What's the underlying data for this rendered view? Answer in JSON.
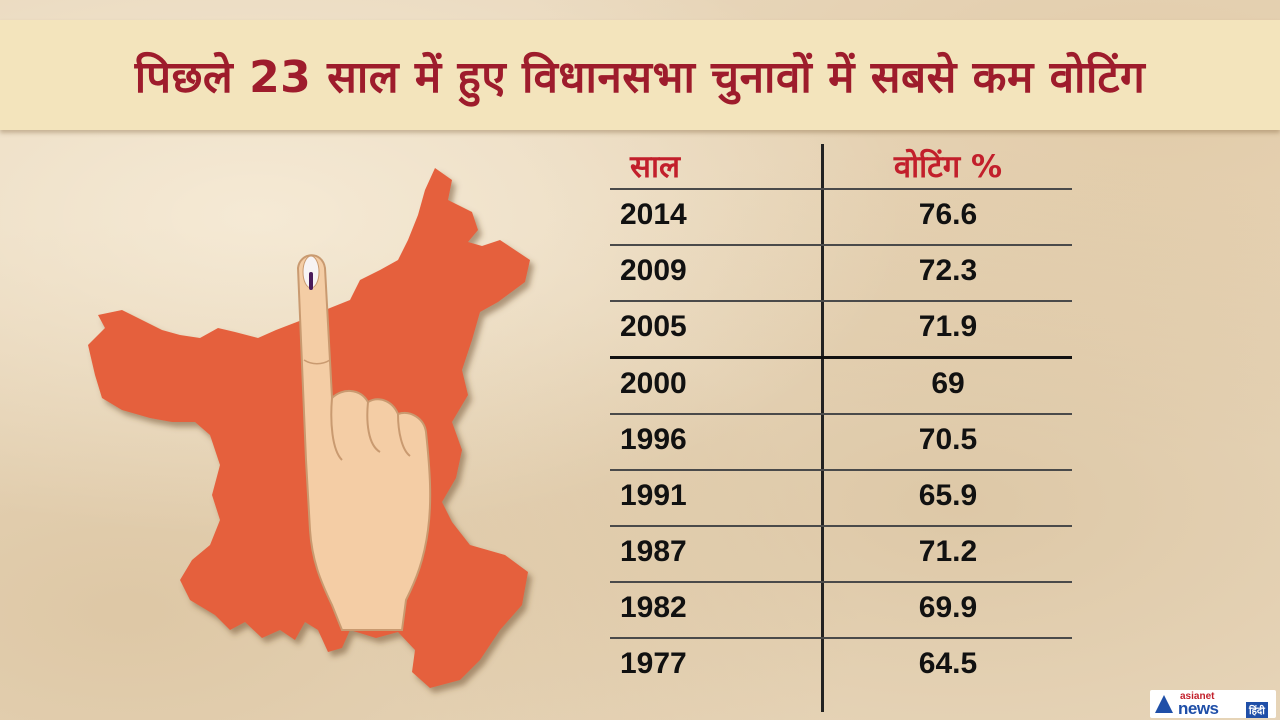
{
  "title": "पिछले 23 साल में हुए विधानसभा चुनावों में सबसे कम वोटिंग",
  "chart_data": {
    "type": "table",
    "columns": [
      "साल",
      "वोटिंग %"
    ],
    "rows": [
      {
        "year": "2014",
        "voting": "76.6"
      },
      {
        "year": "2009",
        "voting": "72.3"
      },
      {
        "year": "2005",
        "voting": "71.9"
      },
      {
        "year": "2000",
        "voting": "69"
      },
      {
        "year": "1996",
        "voting": "70.5"
      },
      {
        "year": "1991",
        "voting": "65.9"
      },
      {
        "year": "1987",
        "voting": "71.2"
      },
      {
        "year": "1982",
        "voting": "69.9"
      },
      {
        "year": "1977",
        "voting": "64.5"
      }
    ]
  },
  "logo": {
    "small": "asianet",
    "big": "news",
    "tag": "हिंदी"
  },
  "colors": {
    "title": "#9e1c2c",
    "header": "#c21f2b",
    "map": "#e5603e",
    "title_bg": "#f3e4bc"
  },
  "icons": {
    "map": "state-map-icon",
    "finger": "voting-finger-icon"
  }
}
